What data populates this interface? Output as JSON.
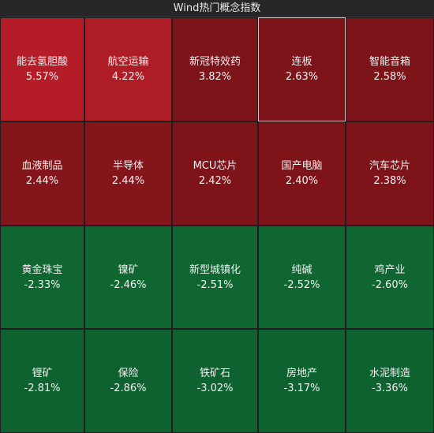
{
  "header": {
    "title": "Wind热门概念指数"
  },
  "tiles": [
    {
      "name": "能去氢胆酸",
      "change": "5.57%",
      "color": "#b41d27"
    },
    {
      "name": "航空运输",
      "change": "4.22%",
      "color": "#ae1c26"
    },
    {
      "name": "新冠特效药",
      "change": "3.82%",
      "color": "#7c1419"
    },
    {
      "name": "连板",
      "change": "2.63%",
      "color": "#7c1419",
      "selected": true
    },
    {
      "name": "智能音箱",
      "change": "2.58%",
      "color": "#7c1419"
    },
    {
      "name": "血液制品",
      "change": "2.44%",
      "color": "#84161b"
    },
    {
      "name": "半导体",
      "change": "2.44%",
      "color": "#84161b"
    },
    {
      "name": "MCU芯片",
      "change": "2.42%",
      "color": "#7e1419"
    },
    {
      "name": "国产电脑",
      "change": "2.40%",
      "color": "#7e1419"
    },
    {
      "name": "汽车芯片",
      "change": "2.38%",
      "color": "#7e1419"
    },
    {
      "name": "黄金珠宝",
      "change": "-2.33%",
      "color": "#0f6631"
    },
    {
      "name": "镍矿",
      "change": "-2.46%",
      "color": "#0f6631"
    },
    {
      "name": "新型城镇化",
      "change": "-2.51%",
      "color": "#0f6631"
    },
    {
      "name": "纯碱",
      "change": "-2.52%",
      "color": "#0f6631"
    },
    {
      "name": "鸡产业",
      "change": "-2.60%",
      "color": "#0f6631"
    },
    {
      "name": "锂矿",
      "change": "-2.81%",
      "color": "#0e6230"
    },
    {
      "name": "保险",
      "change": "-2.86%",
      "color": "#0e6230"
    },
    {
      "name": "铁矿石",
      "change": "-3.02%",
      "color": "#0e6230"
    },
    {
      "name": "房地产",
      "change": "-3.17%",
      "color": "#0e6230"
    },
    {
      "name": "水泥制造",
      "change": "-3.36%",
      "color": "#0e6230"
    }
  ]
}
